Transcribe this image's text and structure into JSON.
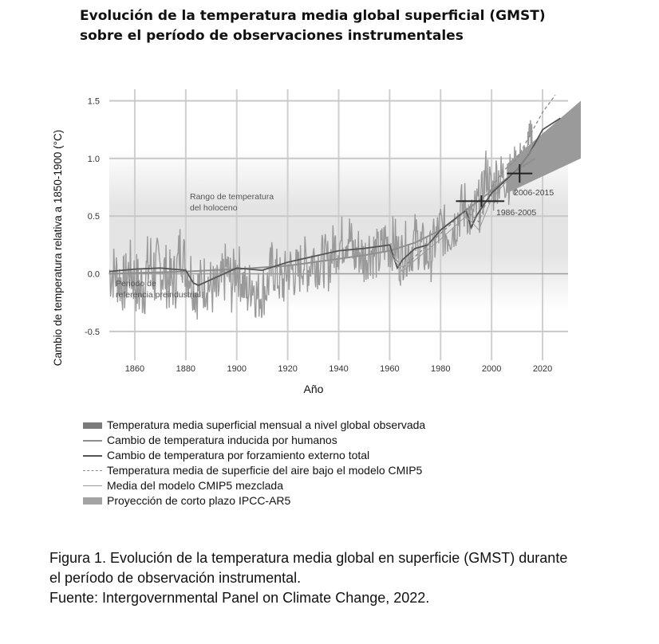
{
  "title": {
    "line1": "Evolución de la temperatura media global superficial (GMST)",
    "line2": "sobre el período de observaciones instrumentales"
  },
  "chart_data": {
    "type": "line",
    "xlabel": "Año",
    "ylabel": "Cambio de temperatura relativa a 1850-1900 (°C)",
    "xlim": [
      1850,
      2030
    ],
    "ylim": [
      -0.75,
      1.6
    ],
    "xticks": [
      1860,
      1880,
      1900,
      1920,
      1940,
      1960,
      1980,
      2000,
      2020
    ],
    "yticks": [
      -0.5,
      0.0,
      0.5,
      1.0,
      1.5
    ],
    "ytick_labels": [
      "-0.5",
      "0.0",
      "0.5",
      "1.0",
      "1.5"
    ],
    "grid": true,
    "annotations": {
      "holocene": [
        "Rango de temperatura",
        "del holoceno"
      ],
      "preindustrial": [
        "Periodo de",
        "referencia preindustrial"
      ],
      "period_2006": "2006-2015",
      "period_1986": "1986-2005"
    },
    "holocene_band": {
      "low": -0.25,
      "high": 1.0
    },
    "series": [
      {
        "name": "Temperatura media superficial mensual a nivel global observada",
        "style": "monthly",
        "x": [
          1850,
          1852,
          1854,
          1856,
          1858,
          1860,
          1862,
          1864,
          1866,
          1868,
          1870,
          1872,
          1874,
          1876,
          1878,
          1880,
          1882,
          1884,
          1886,
          1888,
          1890,
          1892,
          1894,
          1896,
          1898,
          1900,
          1902,
          1904,
          1906,
          1908,
          1910,
          1912,
          1914,
          1916,
          1918,
          1920,
          1922,
          1924,
          1926,
          1928,
          1930,
          1932,
          1934,
          1936,
          1938,
          1940,
          1942,
          1944,
          1946,
          1948,
          1950,
          1952,
          1954,
          1956,
          1958,
          1960,
          1962,
          1964,
          1966,
          1968,
          1970,
          1972,
          1974,
          1976,
          1978,
          1980,
          1982,
          1984,
          1986,
          1988,
          1990,
          1992,
          1994,
          1996,
          1998,
          2000,
          2002,
          2004,
          2006,
          2008,
          2010,
          2012,
          2014,
          2016
        ],
        "values": [
          0.0,
          0.02,
          -0.05,
          -0.1,
          0.05,
          -0.05,
          -0.15,
          -0.05,
          0.1,
          0.0,
          0.05,
          0.0,
          -0.08,
          -0.05,
          0.25,
          0.05,
          0.0,
          -0.15,
          -0.1,
          -0.05,
          -0.12,
          -0.18,
          -0.1,
          0.05,
          -0.1,
          0.08,
          -0.05,
          -0.18,
          -0.05,
          -0.2,
          -0.15,
          -0.1,
          0.08,
          -0.02,
          -0.1,
          0.05,
          0.02,
          0.0,
          0.12,
          0.05,
          0.15,
          0.1,
          0.12,
          0.08,
          0.22,
          0.25,
          0.3,
          0.35,
          0.15,
          0.2,
          0.12,
          0.22,
          0.18,
          0.15,
          0.28,
          0.25,
          0.28,
          0.12,
          0.22,
          0.2,
          0.3,
          0.25,
          0.18,
          0.15,
          0.3,
          0.4,
          0.35,
          0.38,
          0.45,
          0.55,
          0.6,
          0.45,
          0.55,
          0.62,
          0.9,
          0.68,
          0.85,
          0.82,
          0.86,
          0.8,
          0.95,
          0.92,
          1.0,
          1.2
        ],
        "spread": [
          0.12,
          0.12,
          0.12,
          0.12,
          0.12,
          0.13,
          0.15,
          0.15,
          0.15,
          0.15,
          0.13,
          0.13,
          0.13,
          0.12,
          0.12,
          0.12,
          0.12,
          0.12,
          0.12,
          0.12,
          0.12,
          0.12,
          0.12,
          0.12,
          0.12,
          0.11,
          0.11,
          0.11,
          0.11,
          0.11,
          0.11,
          0.11,
          0.11,
          0.11,
          0.11,
          0.11,
          0.11,
          0.11,
          0.11,
          0.11,
          0.11,
          0.11,
          0.11,
          0.11,
          0.11,
          0.11,
          0.11,
          0.11,
          0.11,
          0.11,
          0.11,
          0.11,
          0.11,
          0.11,
          0.11,
          0.11,
          0.11,
          0.11,
          0.11,
          0.11,
          0.11,
          0.11,
          0.11,
          0.11,
          0.11,
          0.11,
          0.11,
          0.11,
          0.11,
          0.11,
          0.11,
          0.11,
          0.11,
          0.11,
          0.11,
          0.11,
          0.11,
          0.11,
          0.11,
          0.11,
          0.11,
          0.11,
          0.11,
          0.11
        ]
      },
      {
        "name": "Cambio de temperatura inducida por humanos",
        "style": "human",
        "x": [
          1850,
          1880,
          1900,
          1920,
          1940,
          1950,
          1960,
          1970,
          1980,
          1990,
          2000,
          2010,
          2017
        ],
        "values": [
          0.0,
          0.02,
          0.04,
          0.07,
          0.13,
          0.16,
          0.2,
          0.27,
          0.38,
          0.55,
          0.72,
          0.9,
          1.0
        ]
      },
      {
        "name": "Cambio de temperatura por forzamiento externo total",
        "style": "forcing",
        "x": [
          1850,
          1860,
          1870,
          1880,
          1883,
          1885,
          1890,
          1900,
          1910,
          1920,
          1930,
          1940,
          1950,
          1960,
          1963,
          1965,
          1970,
          1975,
          1980,
          1990,
          1992,
          1994,
          2000,
          2005,
          2010,
          2015,
          2020,
          2027
        ],
        "values": [
          0.02,
          0.04,
          0.05,
          0.03,
          -0.08,
          -0.1,
          -0.05,
          0.05,
          0.03,
          0.1,
          0.15,
          0.2,
          0.22,
          0.25,
          0.05,
          0.12,
          0.22,
          0.25,
          0.38,
          0.55,
          0.4,
          0.5,
          0.7,
          0.8,
          0.9,
          1.05,
          1.25,
          1.35
        ]
      },
      {
        "name": "Temperatura media de superficie del aire bajo el modelo CMIP5",
        "style": "cmip-dash",
        "x": [
          1960,
          1965,
          1970,
          1980,
          1990,
          1995,
          2000,
          2005,
          2010,
          2015,
          2020,
          2025
        ],
        "values": [
          0.2,
          0.05,
          0.15,
          0.35,
          0.55,
          0.45,
          0.75,
          0.9,
          1.0,
          1.2,
          1.4,
          1.55
        ]
      },
      {
        "name": "Media del modelo CMIP5 mezclada",
        "style": "cmip-thin",
        "x": [
          1960,
          1965,
          1970,
          1980,
          1990,
          1995,
          2000,
          2005,
          2010,
          2015,
          2020
        ],
        "values": [
          0.18,
          0.02,
          0.12,
          0.3,
          0.5,
          0.38,
          0.65,
          0.78,
          0.9,
          1.05,
          1.2
        ]
      },
      {
        "name": "Proyección de corto plazo IPCC-AR5",
        "style": "band",
        "x": [
          2006,
          2035
        ],
        "low": [
          0.7,
          1.0
        ],
        "high": [
          0.95,
          1.5
        ]
      }
    ],
    "crosses": [
      {
        "label": "1986-2005",
        "x": [
          1986,
          2005
        ],
        "y": 0.63,
        "x_center": 1996,
        "y_range": [
          0.58,
          0.68
        ]
      },
      {
        "label": "2006-2015",
        "x": [
          2006,
          2016
        ],
        "y": 0.87,
        "x_center": 2011,
        "y_range": [
          0.79,
          0.95
        ]
      }
    ]
  },
  "legend": [
    {
      "swatch": "thick",
      "label": "Temperatura media superficial mensual a nivel global observada"
    },
    {
      "swatch": "line",
      "label": "Cambio de temperatura inducida por humanos"
    },
    {
      "swatch": "line-dark",
      "label": "Cambio de temperatura por forzamiento externo total"
    },
    {
      "swatch": "dash",
      "label": "Temperatura media de superficie del aire bajo el modelo CMIP5"
    },
    {
      "swatch": "thin",
      "label": "Media del modelo CMIP5 mezclada"
    },
    {
      "swatch": "band",
      "label": "Proyección de corto plazo IPCC-AR5"
    }
  ],
  "caption": {
    "line1": "Figura 1. Evolución de la temperatura media global en superficie (GMST) durante",
    "line2": "el período de observación instrumental.",
    "line3": "Fuente: Intergovernmental Panel on Climate Change, 2022."
  },
  "colors": {
    "observed": "#8c8c8c",
    "human": "#8f8f8f",
    "forcing": "#555555",
    "cmip": "#8a8a8a",
    "band": "#9a9a9a",
    "grid": "#c8c8c8",
    "holocene": "#e6e6e6"
  }
}
